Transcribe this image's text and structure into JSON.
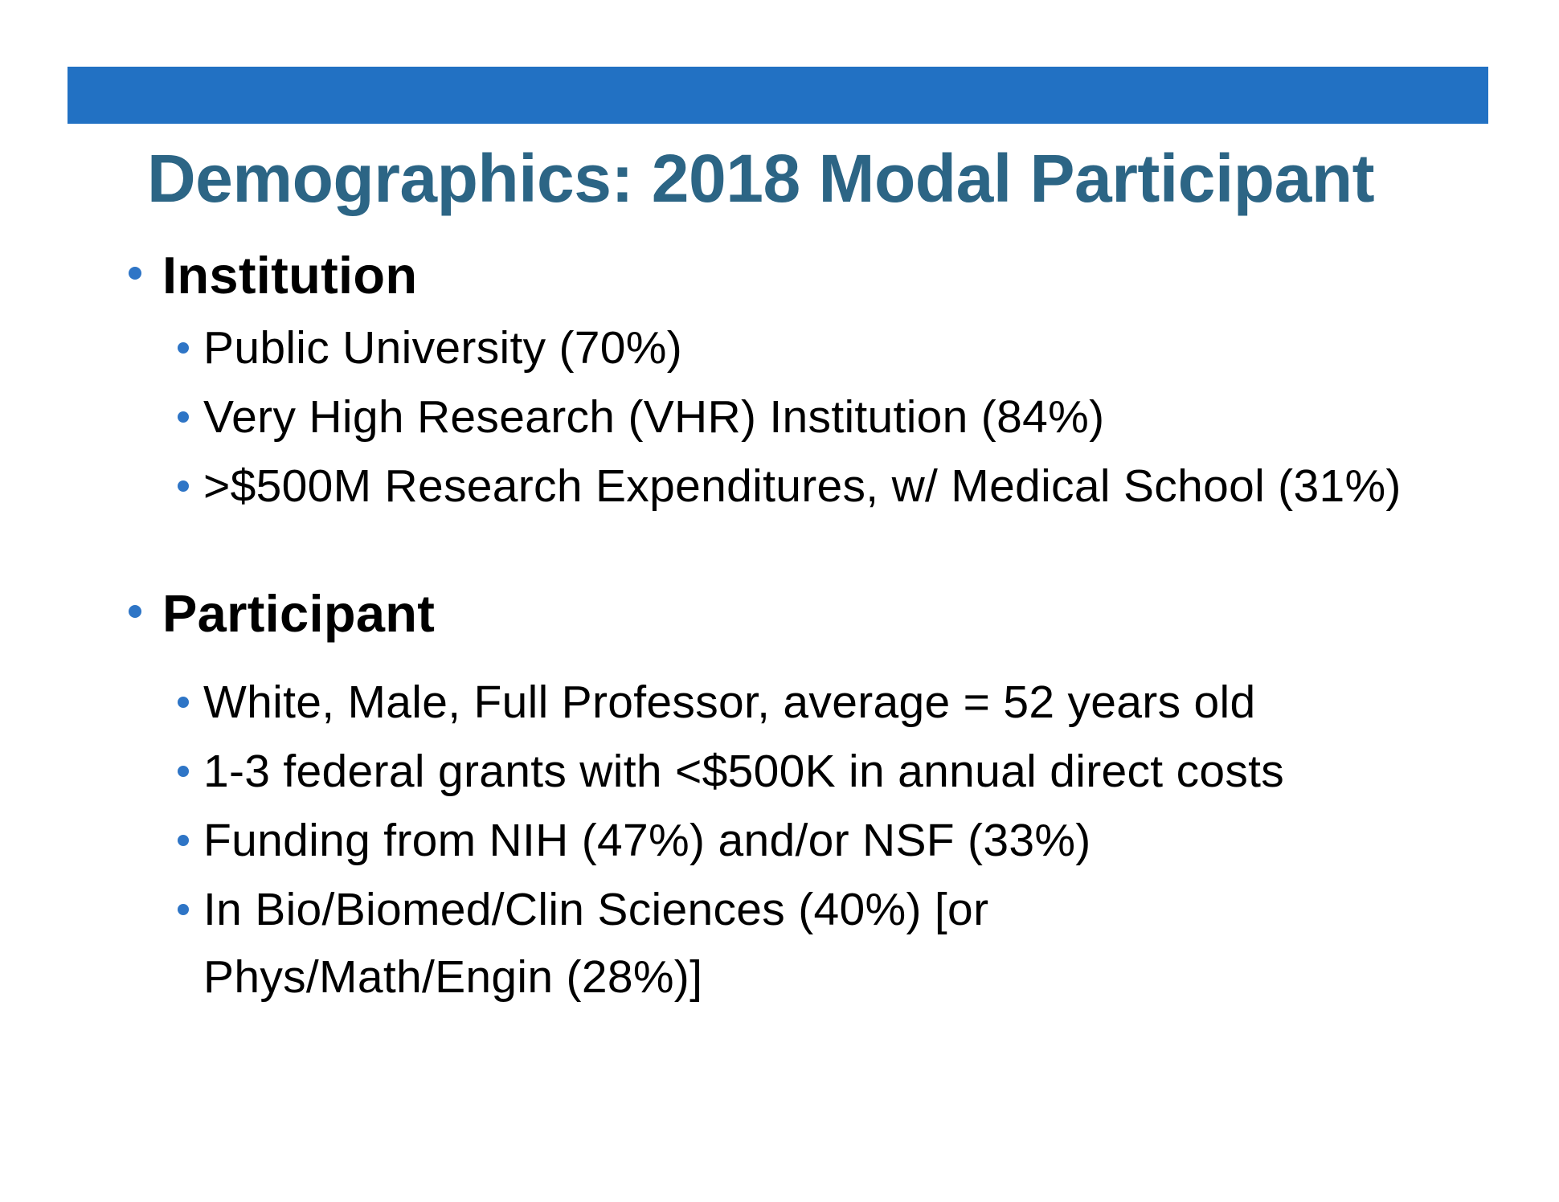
{
  "slide": {
    "title": "Demographics: 2018 Modal Participant",
    "colors": {
      "accent_bar": "#2271C3",
      "title_text": "#2C6585",
      "bullet_dot": "#2E75C6",
      "body_text": "#000000",
      "background": "#FFFFFF"
    },
    "sections": [
      {
        "heading": "Institution",
        "items": [
          "Public University (70%)",
          "Very High Research (VHR) Institution (84%)",
          ">$500M Research Expenditures, w/ Medical School (31%)"
        ]
      },
      {
        "heading": "Participant",
        "items": [
          "White, Male, Full Professor, average = 52 years old",
          "1-3 federal grants with <$500K in annual direct costs",
          "Funding from NIH (47%) and/or NSF (33%)",
          "In Bio/Biomed/Clin Sciences (40%) [or Phys/Math/Engin (28%)]"
        ]
      }
    ]
  }
}
